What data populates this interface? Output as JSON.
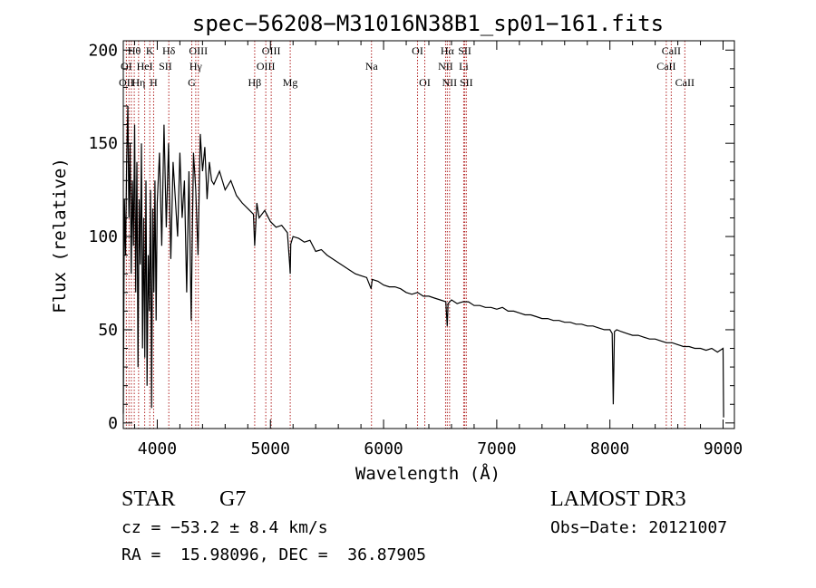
{
  "chart_data": {
    "type": "line",
    "title": "spec−56208−M31016N38B1_sp01−161.fits",
    "xlabel": "Wavelength (Å)",
    "ylabel": "Flux (relative)",
    "xlim": [
      3700,
      9100
    ],
    "ylim": [
      -3,
      205
    ],
    "x_ticks": [
      4000,
      5000,
      6000,
      7000,
      8000,
      9000
    ],
    "x_tick_labels": [
      "4000",
      "5000",
      "6000",
      "7000",
      "8000",
      "9000"
    ],
    "y_ticks": [
      0,
      50,
      100,
      150,
      200
    ],
    "y_tick_labels": [
      "0",
      "50",
      "100",
      "150",
      "200"
    ],
    "grid": false,
    "series": [
      {
        "name": "flux",
        "x": [
          3700,
          3710,
          3720,
          3730,
          3740,
          3750,
          3760,
          3770,
          3780,
          3790,
          3800,
          3810,
          3820,
          3830,
          3840,
          3850,
          3860,
          3870,
          3880,
          3890,
          3900,
          3910,
          3920,
          3930,
          3940,
          3950,
          3960,
          3970,
          3980,
          3990,
          4000,
          4020,
          4040,
          4060,
          4080,
          4100,
          4120,
          4140,
          4160,
          4180,
          4200,
          4220,
          4240,
          4260,
          4280,
          4300,
          4310,
          4320,
          4340,
          4360,
          4380,
          4400,
          4420,
          4440,
          4460,
          4480,
          4500,
          4550,
          4600,
          4650,
          4700,
          4750,
          4800,
          4850,
          4861,
          4880,
          4900,
          4950,
          5000,
          5050,
          5100,
          5150,
          5170,
          5175,
          5180,
          5200,
          5250,
          5300,
          5350,
          5400,
          5450,
          5500,
          5550,
          5600,
          5650,
          5700,
          5750,
          5800,
          5850,
          5890,
          5900,
          5950,
          6000,
          6050,
          6100,
          6150,
          6200,
          6250,
          6300,
          6350,
          6400,
          6450,
          6500,
          6550,
          6563,
          6570,
          6600,
          6650,
          6700,
          6750,
          6800,
          6850,
          6900,
          6950,
          7000,
          7050,
          7100,
          7150,
          7200,
          7250,
          7300,
          7350,
          7400,
          7450,
          7500,
          7550,
          7600,
          7650,
          7700,
          7750,
          7800,
          7850,
          7900,
          7950,
          8000,
          8020,
          8030,
          8040,
          8060,
          8100,
          8150,
          8200,
          8250,
          8300,
          8350,
          8400,
          8450,
          8500,
          8550,
          8600,
          8650,
          8700,
          8750,
          8800,
          8850,
          8900,
          8950,
          9000,
          9005
        ],
        "values": [
          5,
          120,
          90,
          140,
          170,
          110,
          150,
          80,
          130,
          95,
          160,
          70,
          140,
          30,
          120,
          85,
          150,
          40,
          110,
          35,
          130,
          20,
          90,
          60,
          125,
          8,
          115,
          70,
          130,
          55,
          118,
          145,
          95,
          160,
          105,
          150,
          88,
          140,
          120,
          100,
          145,
          110,
          130,
          70,
          135,
          55,
          100,
          145,
          125,
          90,
          155,
          135,
          148,
          120,
          140,
          130,
          128,
          135,
          125,
          130,
          122,
          118,
          115,
          112,
          95,
          118,
          110,
          114,
          108,
          105,
          106,
          102,
          85,
          80,
          96,
          100,
          99,
          97,
          98,
          92,
          93,
          90,
          88,
          86,
          84,
          82,
          80,
          79,
          78,
          72,
          77,
          76,
          74,
          73,
          73,
          72,
          70,
          69,
          70,
          68,
          68,
          67,
          66,
          65,
          52,
          64,
          66,
          64,
          65,
          65,
          63,
          63,
          62,
          62,
          61,
          62,
          60,
          60,
          59,
          58,
          58,
          57,
          56,
          56,
          55,
          55,
          54,
          54,
          53,
          53,
          52,
          52,
          51,
          50,
          50,
          48,
          10,
          49,
          50,
          49,
          48,
          47,
          47,
          46,
          45,
          45,
          44,
          43,
          43,
          42,
          41,
          41,
          40,
          40,
          39,
          40,
          38,
          40,
          3
        ]
      }
    ],
    "line_markers": [
      {
        "label": "Hθ",
        "wavelength": 3797,
        "row": 1
      },
      {
        "label": "K",
        "wavelength": 3934,
        "row": 1
      },
      {
        "label": "Hδ",
        "wavelength": 4102,
        "row": 1
      },
      {
        "label": "OIII",
        "wavelength": 4363,
        "row": 1
      },
      {
        "label": "OIII",
        "wavelength": 5007,
        "row": 1
      },
      {
        "label": "OI",
        "wavelength": 6300,
        "row": 1
      },
      {
        "label": "Hα",
        "wavelength": 6563,
        "row": 1
      },
      {
        "label": "SII",
        "wavelength": 6717,
        "row": 1
      },
      {
        "label": "CaII",
        "wavelength": 8542,
        "row": 1
      },
      {
        "label": "OI",
        "wavelength": 3727,
        "row": 2
      },
      {
        "label": "HeI",
        "wavelength": 3889,
        "row": 2
      },
      {
        "label": "SII",
        "wavelength": 4072,
        "row": 2
      },
      {
        "label": "Hγ",
        "wavelength": 4340,
        "row": 2
      },
      {
        "label": "OIII",
        "wavelength": 4959,
        "row": 2
      },
      {
        "label": "Na",
        "wavelength": 5893,
        "row": 2
      },
      {
        "label": "NII",
        "wavelength": 6548,
        "row": 2
      },
      {
        "label": "Li",
        "wavelength": 6708,
        "row": 2
      },
      {
        "label": "CaII",
        "wavelength": 8498,
        "row": 2
      },
      {
        "label": "OII",
        "wavelength": 3727,
        "row": 3
      },
      {
        "label": "Hη",
        "wavelength": 3835,
        "row": 3
      },
      {
        "label": "H",
        "wavelength": 3968,
        "row": 3
      },
      {
        "label": "G",
        "wavelength": 4305,
        "row": 3
      },
      {
        "label": "Hβ",
        "wavelength": 4861,
        "row": 3
      },
      {
        "label": "Mg",
        "wavelength": 5175,
        "row": 3
      },
      {
        "label": "OI",
        "wavelength": 6364,
        "row": 3
      },
      {
        "label": "NII",
        "wavelength": 6583,
        "row": 3
      },
      {
        "label": "SII",
        "wavelength": 6731,
        "row": 3
      },
      {
        "label": "CaII",
        "wavelength": 8662,
        "row": 3
      }
    ],
    "marker_lines": [
      3727,
      3750,
      3771,
      3797,
      3835,
      3889,
      3934,
      3968,
      4102,
      4305,
      4340,
      4363,
      4861,
      4959,
      5007,
      5175,
      5893,
      6300,
      6364,
      6548,
      6563,
      6583,
      6708,
      6717,
      6731,
      8498,
      8542,
      8662
    ]
  },
  "info": {
    "object_class": "STAR",
    "subclass": "G7",
    "survey": "LAMOST DR3",
    "redshift": "cz = −53.2 ± 8.4 km/s",
    "obs_date": "Obs−Date: 20121007",
    "coords": "RA =  15.98096, DEC =  36.87905"
  },
  "colors": {
    "spectrum": "#000000",
    "marker_line": "#b22222",
    "axes": "#000000"
  }
}
